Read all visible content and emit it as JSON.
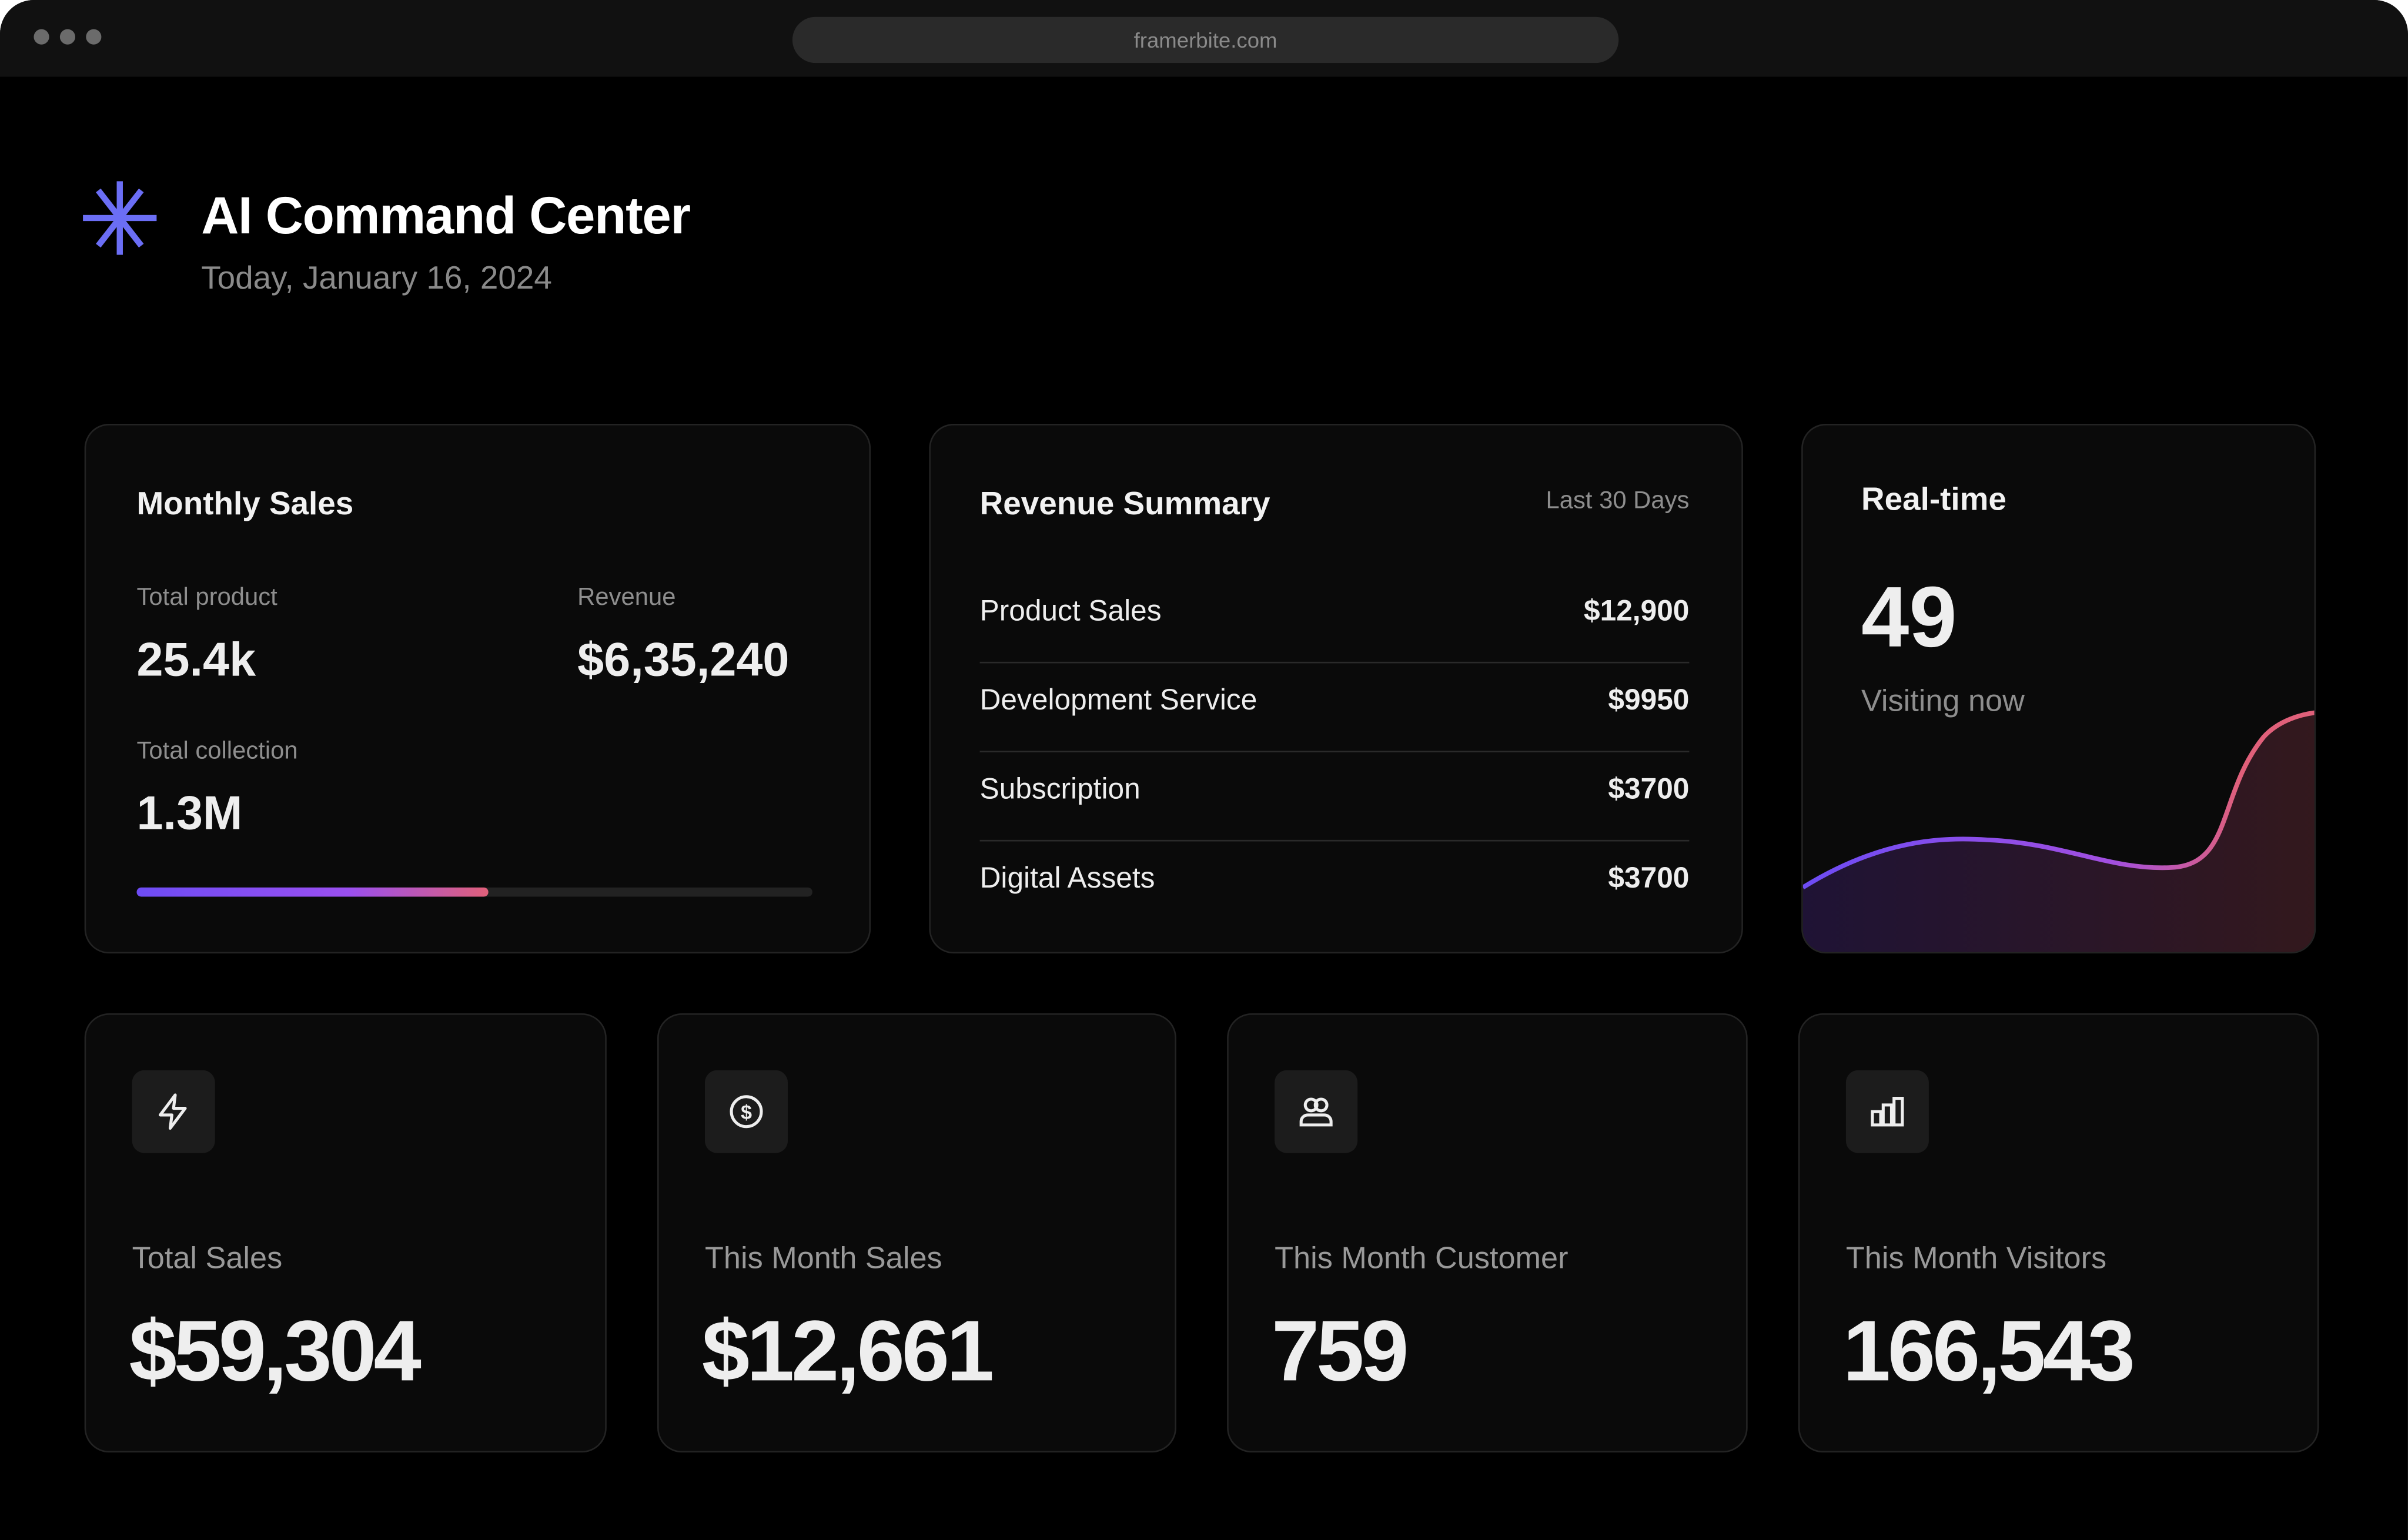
{
  "browser": {
    "url": "framerbite.com"
  },
  "header": {
    "title": "AI Command Center",
    "date": "Today, January 16, 2024",
    "logo_icon": "asterisk-icon",
    "accent": "#6b6ef5"
  },
  "monthly_sales": {
    "title": "Monthly Sales",
    "total_product_label": "Total product",
    "total_product": "25.4k",
    "revenue_label": "Revenue",
    "revenue": "$6,35,240",
    "total_collection_label": "Total collection",
    "total_collection": "1.3M",
    "progress_percent": 52,
    "progress_colors": [
      "#6d4cf5",
      "#e0607a"
    ]
  },
  "revenue_summary": {
    "title": "Revenue Summary",
    "period": "Last 30 Days",
    "rows": [
      {
        "label": "Product Sales",
        "amount": "$12,900"
      },
      {
        "label": "Development Service",
        "amount": "$9950"
      },
      {
        "label": "Subscription",
        "amount": "$3700"
      },
      {
        "label": "Digital Assets",
        "amount": "$3700"
      }
    ]
  },
  "realtime": {
    "title": "Real-time",
    "count": "49",
    "subtitle": "Visiting now",
    "line_colors": [
      "#6d4cf5",
      "#e0607a"
    ]
  },
  "stats": [
    {
      "icon": "lightning-icon",
      "label": "Total Sales",
      "value": "$59,304"
    },
    {
      "icon": "dollar-circle-icon",
      "label": "This Month Sales",
      "value": "$12,661"
    },
    {
      "icon": "users-icon",
      "label": "This Month Customer",
      "value": "759"
    },
    {
      "icon": "bar-chart-icon",
      "label": "This Month Visitors",
      "value": "166,543"
    }
  ]
}
